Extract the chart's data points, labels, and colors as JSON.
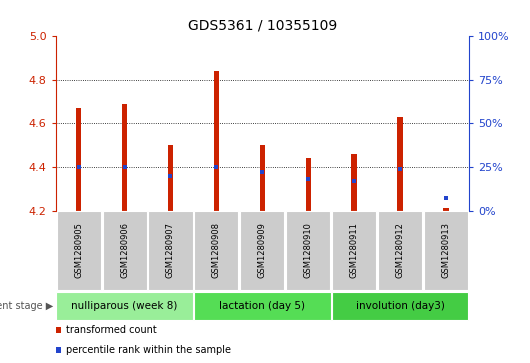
{
  "title": "GDS5361 / 10355109",
  "samples": [
    "GSM1280905",
    "GSM1280906",
    "GSM1280907",
    "GSM1280908",
    "GSM1280909",
    "GSM1280910",
    "GSM1280911",
    "GSM1280912",
    "GSM1280913"
  ],
  "bar_bottoms": [
    4.2,
    4.2,
    4.2,
    4.2,
    4.2,
    4.2,
    4.2,
    4.2,
    4.2
  ],
  "bar_tops": [
    4.67,
    4.69,
    4.5,
    4.84,
    4.5,
    4.44,
    4.46,
    4.63,
    4.21
  ],
  "percentile_ranks": [
    25,
    25,
    20,
    25,
    22,
    18,
    17,
    24,
    7
  ],
  "ylim_left": [
    4.2,
    5.0
  ],
  "ylim_right": [
    0,
    100
  ],
  "yticks_left": [
    4.2,
    4.4,
    4.6,
    4.8,
    5.0
  ],
  "yticks_right": [
    0,
    25,
    50,
    75,
    100
  ],
  "ytick_labels_right": [
    "0%",
    "25%",
    "50%",
    "75%",
    "100%"
  ],
  "bar_color": "#cc2200",
  "percentile_color": "#2244cc",
  "grid_color": "#000000",
  "groups": [
    {
      "label": "nulliparous (week 8)",
      "start": 0,
      "end": 3,
      "color": "#99ee99"
    },
    {
      "label": "lactation (day 5)",
      "start": 3,
      "end": 6,
      "color": "#55dd55"
    },
    {
      "label": "involution (day3)",
      "start": 6,
      "end": 9,
      "color": "#44cc44"
    }
  ],
  "legend_entries": [
    {
      "label": "transformed count",
      "color": "#cc2200"
    },
    {
      "label": "percentile rank within the sample",
      "color": "#2244cc"
    }
  ],
  "dev_stage_label": "development stage",
  "bg_color": "#ffffff",
  "plot_bg_color": "#ffffff",
  "tick_label_color_left": "#cc2200",
  "tick_label_color_right": "#2244cc",
  "bar_width": 0.12
}
